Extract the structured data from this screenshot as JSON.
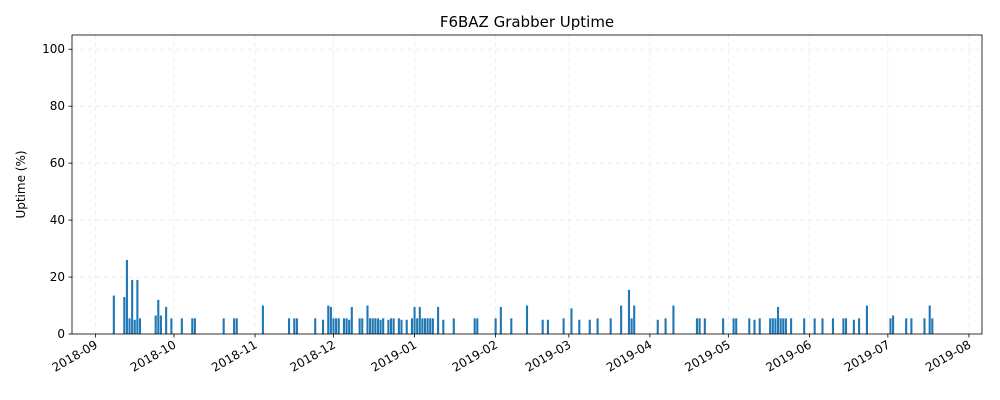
{
  "chart_data": {
    "type": "bar",
    "title": "F6BAZ Grabber Uptime",
    "xlabel": "",
    "ylabel": "Uptime (%)",
    "ylim": [
      0,
      105
    ],
    "xlim": [
      "2018-08-23",
      "2019-08-06"
    ],
    "yticks": [
      0,
      20,
      40,
      60,
      80,
      100
    ],
    "xticks": [
      "2018-09",
      "2018-10",
      "2018-11",
      "2018-12",
      "2019-01",
      "2019-02",
      "2019-03",
      "2019-04",
      "2019-05",
      "2019-06",
      "2019-07",
      "2019-08"
    ],
    "grid": true,
    "bar_color": "#1f77b4",
    "x": [
      "2018-09-08",
      "2018-09-12",
      "2018-09-13",
      "2018-09-14",
      "2018-09-15",
      "2018-09-16",
      "2018-09-17",
      "2018-09-18",
      "2018-09-24",
      "2018-09-25",
      "2018-09-26",
      "2018-09-28",
      "2018-09-30",
      "2018-10-04",
      "2018-10-08",
      "2018-10-09",
      "2018-10-20",
      "2018-10-24",
      "2018-10-25",
      "2018-11-04",
      "2018-11-14",
      "2018-11-16",
      "2018-11-17",
      "2018-11-24",
      "2018-11-27",
      "2018-11-29",
      "2018-11-30",
      "2018-12-01",
      "2018-12-02",
      "2018-12-03",
      "2018-12-05",
      "2018-12-06",
      "2018-12-07",
      "2018-12-08",
      "2018-12-11",
      "2018-12-12",
      "2018-12-14",
      "2018-12-15",
      "2018-12-16",
      "2018-12-17",
      "2018-12-18",
      "2018-12-19",
      "2018-12-20",
      "2018-12-22",
      "2018-12-23",
      "2018-12-24",
      "2018-12-26",
      "2018-12-27",
      "2018-12-29",
      "2018-12-31",
      "2019-01-01",
      "2019-01-02",
      "2019-01-03",
      "2019-01-04",
      "2019-01-05",
      "2019-01-06",
      "2019-01-07",
      "2019-01-08",
      "2019-01-10",
      "2019-01-12",
      "2019-01-16",
      "2019-01-24",
      "2019-01-25",
      "2019-02-01",
      "2019-02-03",
      "2019-02-07",
      "2019-02-13",
      "2019-02-19",
      "2019-02-21",
      "2019-02-27",
      "2019-03-02",
      "2019-03-05",
      "2019-03-09",
      "2019-03-12",
      "2019-03-17",
      "2019-03-21",
      "2019-03-24",
      "2019-03-25",
      "2019-03-26",
      "2019-04-04",
      "2019-04-07",
      "2019-04-10",
      "2019-04-19",
      "2019-04-20",
      "2019-04-22",
      "2019-04-29",
      "2019-05-03",
      "2019-05-04",
      "2019-05-09",
      "2019-05-11",
      "2019-05-13",
      "2019-05-17",
      "2019-05-18",
      "2019-05-19",
      "2019-05-20",
      "2019-05-21",
      "2019-05-22",
      "2019-05-23",
      "2019-05-25",
      "2019-05-30",
      "2019-06-03",
      "2019-06-06",
      "2019-06-10",
      "2019-06-14",
      "2019-06-15",
      "2019-06-18",
      "2019-06-20",
      "2019-06-23",
      "2019-07-02",
      "2019-07-03",
      "2019-07-08",
      "2019-07-10",
      "2019-07-15",
      "2019-07-17",
      "2019-07-18"
    ],
    "values": [
      13.5,
      13,
      26,
      5.5,
      19,
      5,
      19,
      5.5,
      6.5,
      12,
      6.5,
      9.5,
      5.5,
      5.5,
      5.5,
      5.5,
      5.5,
      5.5,
      5.5,
      10,
      5.5,
      5.5,
      5.5,
      5.5,
      5,
      10,
      9.5,
      5.5,
      5.5,
      5.5,
      5.5,
      5.5,
      5,
      9.5,
      5.5,
      5.5,
      10,
      5.5,
      5.5,
      5.5,
      5.5,
      5,
      5.5,
      5,
      5.5,
      5.5,
      5.5,
      5,
      5,
      5.5,
      9.5,
      5.5,
      9.5,
      5.5,
      5.5,
      5.5,
      5.5,
      5.5,
      9.5,
      5,
      5.5,
      5.5,
      5.5,
      5.5,
      9.5,
      5.5,
      10,
      5,
      5,
      5.5,
      9,
      5,
      5,
      5.5,
      5.5,
      10,
      15.5,
      5.5,
      10,
      5,
      5.5,
      10,
      5.5,
      5.5,
      5.5,
      5.5,
      5.5,
      5.5,
      5.5,
      5,
      5.5,
      5.5,
      5.5,
      5.5,
      9.5,
      5.5,
      5.5,
      5.5,
      5.5,
      5.5,
      5.5,
      5.5,
      5.5,
      5.5,
      5.5,
      5,
      5.5,
      10,
      5.5,
      6.5,
      5.5,
      5.5,
      5.5,
      10,
      5.5
    ]
  }
}
